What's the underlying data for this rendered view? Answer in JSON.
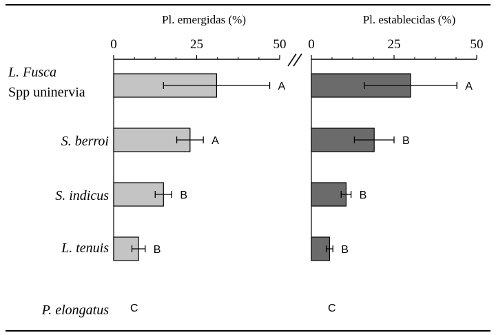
{
  "chart_data": [
    {
      "type": "bar",
      "orientation": "horizontal",
      "title": "Pl.  emergidas  (%)",
      "xlim": [
        0,
        50
      ],
      "xticks": [
        "0",
        "25",
        "50"
      ],
      "categories": [
        "L. Fusca|Spp uninervia",
        "S. berroi",
        "S. indicus",
        "L. tenuis",
        "P. elongatus"
      ],
      "values": [
        31,
        23,
        15,
        7.5,
        0
      ],
      "errors": [
        16,
        4,
        2.5,
        2,
        0
      ],
      "letters": [
        "A",
        "A",
        "B",
        "B",
        "C"
      ],
      "bar_color": "#c4c4c4",
      "grid": false
    },
    {
      "type": "bar",
      "orientation": "horizontal",
      "title": "Pl.  establecidas (%)",
      "xlim": [
        0,
        50
      ],
      "xticks": [
        "0",
        "25",
        "50"
      ],
      "categories": [
        "L. Fusca|Spp uninervia",
        "S. berroi",
        "S. indicus",
        "L. tenuis",
        "P. elongatus"
      ],
      "values": [
        30,
        19,
        10.5,
        5.5,
        0
      ],
      "errors": [
        14,
        6,
        1.5,
        1,
        0
      ],
      "letters": [
        "A",
        "B",
        "B",
        "B",
        "C"
      ],
      "bar_color": "#6b6b6b",
      "grid": false
    }
  ],
  "category_labels": [
    [
      "L. Fusca",
      "Spp uninervia"
    ],
    [
      "S. berroi"
    ],
    [
      "S. indicus"
    ],
    [
      "L. tenuis"
    ],
    [
      "P. elongatus"
    ]
  ]
}
